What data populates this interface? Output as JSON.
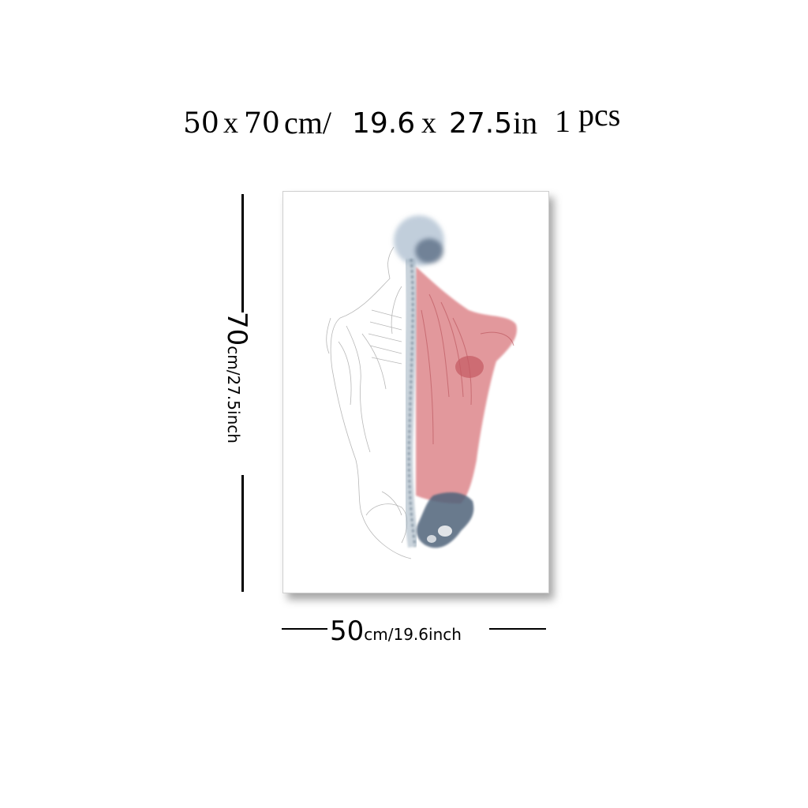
{
  "title": {
    "w": "50",
    "x1": "x",
    "h": "70",
    "cm": "cm/",
    "w_in": "19.6",
    "x2": "x",
    "h_in": "27.5",
    "in": "in",
    "qty": "1",
    "pcs": "pcs"
  },
  "vertical_dimension": {
    "value": "70",
    "unit": "cm/27.5inch"
  },
  "horizontal_dimension": {
    "value": "50",
    "unit": "cm/19.6inch"
  },
  "colors": {
    "muscle": "#d9767b",
    "bone": "#5f7387",
    "sketch": "#9a9a9a"
  }
}
